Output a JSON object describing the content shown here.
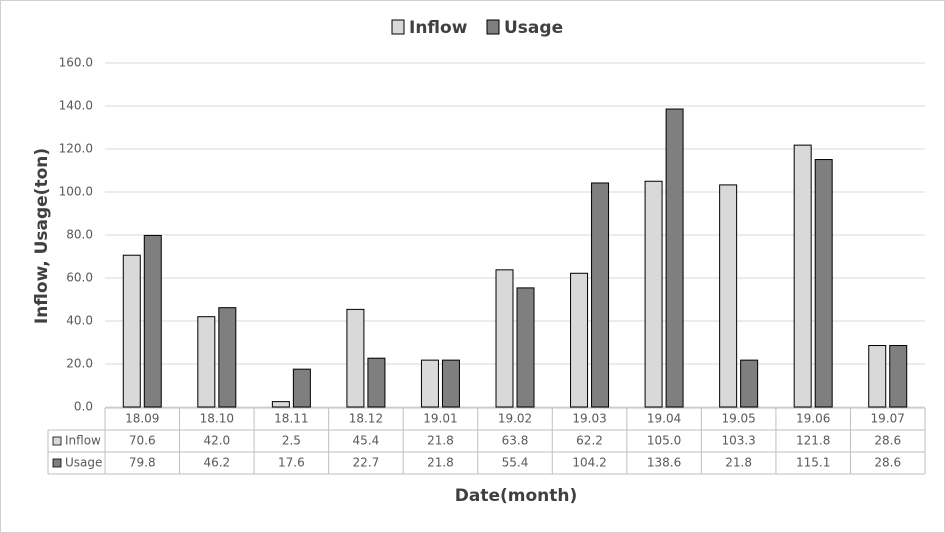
{
  "chart_data": {
    "type": "bar",
    "categories": [
      "18.09",
      "18.10",
      "18.11",
      "18.12",
      "19.01",
      "19.02",
      "19.03",
      "19.04",
      "19.05",
      "19.06",
      "19.07"
    ],
    "series": [
      {
        "name": "Inflow",
        "color": "#d9d9d9",
        "values": [
          70.6,
          42.0,
          2.5,
          45.4,
          21.8,
          63.8,
          62.2,
          105.0,
          103.3,
          121.8,
          28.6
        ],
        "value_labels": [
          "70.6",
          "42.0",
          "2.5",
          "45.4",
          "21.8",
          "63.8",
          "62.2",
          "105.0",
          "103.3",
          "121.8",
          "28.6"
        ]
      },
      {
        "name": "Usage",
        "color": "#7f7f7f",
        "values": [
          79.8,
          46.2,
          17.6,
          22.7,
          21.8,
          55.4,
          104.2,
          138.6,
          21.8,
          115.1,
          28.6
        ],
        "value_labels": [
          "79.8",
          "46.2",
          "17.6",
          "22.7",
          "21.8",
          "55.4",
          "104.2",
          "138.6",
          "21.8",
          "115.1",
          "28.6"
        ]
      }
    ],
    "xlabel": "Date(month)",
    "ylabel": "Inflow, Usage(ton)",
    "ylim": [
      0,
      160
    ],
    "yticks": [
      {
        "value": 0,
        "label": "0.0"
      },
      {
        "value": 20,
        "label": "20.0"
      },
      {
        "value": 40,
        "label": "40.0"
      },
      {
        "value": 60,
        "label": "60.0"
      },
      {
        "value": 80,
        "label": "80.0"
      },
      {
        "value": 100,
        "label": "100.0"
      },
      {
        "value": 120,
        "label": "120.0"
      },
      {
        "value": 140,
        "label": "140.0"
      },
      {
        "value": 160,
        "label": "160.0"
      }
    ],
    "grid": true,
    "legend": "top"
  }
}
